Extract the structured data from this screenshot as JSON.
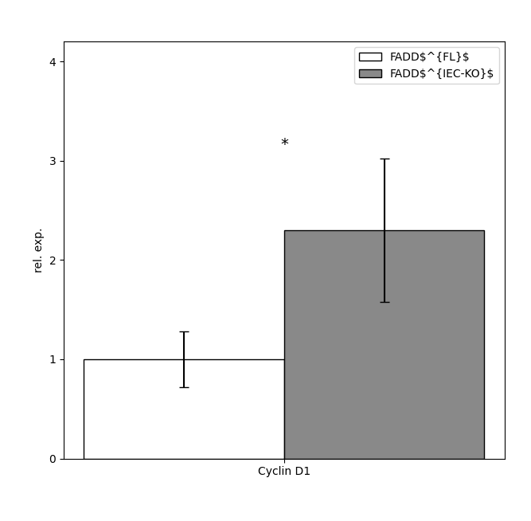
{
  "chart_data": {
    "type": "bar",
    "ylabel": "rel. exp.",
    "categories": [
      "Cyclin D1"
    ],
    "series": [
      {
        "name": "FADD$^{FL}$",
        "color": "#ffffff",
        "values": [
          1.0
        ],
        "errors": [
          0.28
        ]
      },
      {
        "name": "FADD$^{IEC-KO}$",
        "color": "#898989",
        "values": [
          2.3
        ],
        "errors": [
          0.72
        ]
      }
    ],
    "ylim": [
      0,
      4.2
    ],
    "yticks": [
      0,
      1,
      2,
      3,
      4
    ],
    "legend": "upper right",
    "annotations": [
      {
        "text": "*"
      }
    ]
  }
}
